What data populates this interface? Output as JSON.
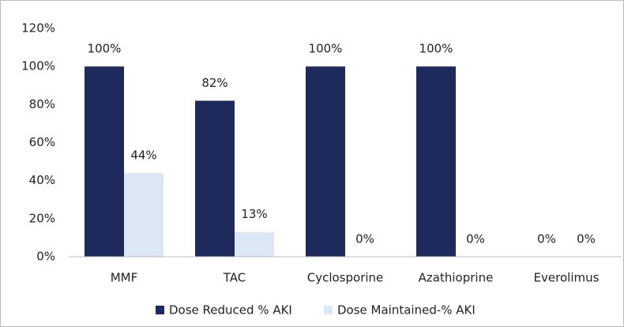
{
  "chart_data": {
    "type": "bar",
    "categories": [
      "MMF",
      "TAC",
      "Cyclosporine",
      "Azathioprine",
      "Everolimus"
    ],
    "series": [
      {
        "name": "Dose Reduced % AKI",
        "color": "#1f2a5c",
        "values": [
          100,
          82,
          100,
          100,
          0
        ],
        "value_labels": [
          "100%",
          "82%",
          "100%",
          "100%",
          "0%"
        ]
      },
      {
        "name": "Dose Maintained-% AKI",
        "color": "#dce7f5",
        "values": [
          44,
          13,
          0,
          0,
          0
        ],
        "value_labels": [
          "44%",
          "13%",
          "0%",
          "0%",
          "0%"
        ]
      }
    ],
    "ylim": [
      0,
      120
    ],
    "yticks": [
      {
        "value": 0,
        "label": "0%"
      },
      {
        "value": 20,
        "label": "20%"
      },
      {
        "value": 40,
        "label": "40%"
      },
      {
        "value": 60,
        "label": "60%"
      },
      {
        "value": 80,
        "label": "80%"
      },
      {
        "value": 100,
        "label": "100%"
      },
      {
        "value": 120,
        "label": "120%"
      }
    ],
    "grid": false,
    "legend": "bottom"
  }
}
